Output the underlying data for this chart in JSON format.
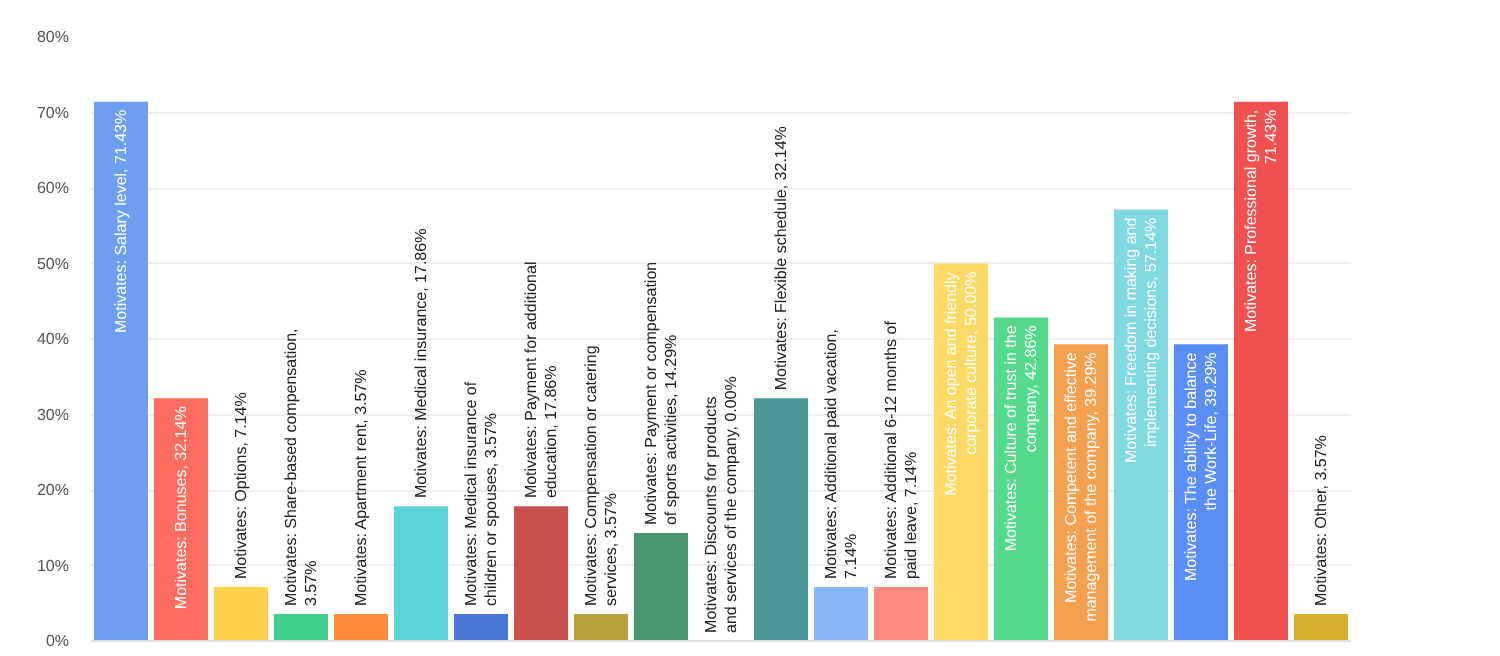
{
  "chart_data": {
    "type": "bar",
    "categories": [
      null,
      null,
      null,
      null,
      null,
      null,
      null,
      null,
      null,
      null,
      null,
      null,
      null,
      null,
      null,
      null,
      null,
      null,
      null,
      null,
      null
    ],
    "values": [
      71.43,
      32.14,
      7.14,
      3.57,
      3.57,
      17.86,
      3.57,
      17.86,
      3.57,
      14.29,
      0.0,
      32.14,
      7.14,
      7.14,
      50.0,
      42.86,
      39.29,
      57.14,
      39.29,
      71.43,
      3.57
    ],
    "colors": [
      "#6e9ef0",
      "#ff6d5e",
      "#ffd04a",
      "#3ecf8e",
      "#ff8c3a",
      "#5ad4d8",
      "#4a78d6",
      "#c9504c",
      "#b8a03a",
      "#4a9670",
      "#cccccc",
      "#4a9898",
      "#8ab4f8",
      "#ff8a80",
      "#ffd966",
      "#55d98a",
      "#f4a050",
      "#80d8e0",
      "#5a8ef5",
      "#f05050",
      "#d8b030"
    ],
    "value_labels": [
      "Motivates: Salary level, 71.43%",
      "Motivates: Bonuses, 32.14%",
      "Motivates: Options, 7.14%",
      "Motivates: Share-based compensation, 3.57%",
      "Motivates: Apartment rent, 3.57%",
      "Motivates: Medical insurance, 17.86%",
      "Motivates: Medical insurance of children or spouses, 3.57%",
      "Motivates: Payment for additional education, 17.86%",
      "Motivates: Compensation or catering services, 3.57%",
      "Motivates: Payment or compensation of sports activities, 14.29%",
      "Motivates: Discounts for products and services of the company, 0.00%",
      "Motivates: Flexible schedule, 32.14%",
      "Motivates: Additional paid vacation, 7.14%",
      "Motivates: Additional 6-12 months of paid leave, 7.14%",
      "Motivates: An open and friendly corporate culture, 50.00%",
      "Motivates: Culture of trust in the company, 42.86%",
      "Motivates: Competent and effective management of the company, 39.29%",
      "Motivates: Freedom in making and implementing decisions, 57.14%",
      "Motivates: The ability to balance the Work-Life, 39.29%",
      "Motivates: Professional growth, 71.43%",
      "Motivates: Other, 3.57%"
    ],
    "ylim": [
      0,
      80
    ],
    "yticks": [
      {
        "value": 0,
        "label": "0%"
      },
      {
        "value": 10,
        "label": "10%"
      },
      {
        "value": 20,
        "label": "20%"
      },
      {
        "value": 30,
        "label": "30%"
      },
      {
        "value": 40,
        "label": "40%"
      },
      {
        "value": 50,
        "label": "50%"
      },
      {
        "value": 60,
        "label": "60%"
      },
      {
        "value": 70,
        "label": "70%"
      },
      {
        "value": 80,
        "label": "80%"
      }
    ],
    "tick_labels": "y",
    "grid": "y"
  }
}
